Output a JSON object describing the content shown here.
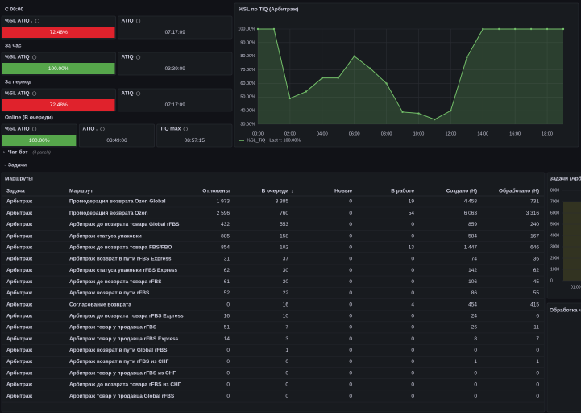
{
  "sections": [
    {
      "title": "С 00:00",
      "panels": [
        {
          "title": "%SL ATIQ .",
          "value": "72.48%",
          "color": "#e0222c"
        },
        {
          "title": "ATIQ",
          "value": "07:17:09"
        }
      ]
    },
    {
      "title": "За час",
      "panels": [
        {
          "title": "%SL ATIQ",
          "value": "100.00%",
          "color": "#56a64b"
        },
        {
          "title": "ATIQ",
          "value": "03:39:09"
        }
      ]
    },
    {
      "title": "За период",
      "panels": [
        {
          "title": "%SL ATIQ",
          "value": "72.48%",
          "color": "#e0222c"
        },
        {
          "title": "ATIQ",
          "value": "07:17:09"
        }
      ]
    },
    {
      "title": "Online (В очереди)",
      "panels": [
        {
          "title": "%SL ATIQ",
          "value": "100.00%",
          "color": "#56a64b"
        },
        {
          "title": "ATIQ .",
          "value": "03:49:06"
        },
        {
          "title": "TiQ max",
          "value": "08:57:15"
        }
      ]
    }
  ],
  "chart_data": {
    "type": "line",
    "title": "%SL по TiQ (Арбитраж)",
    "x": [
      0,
      1,
      2,
      3,
      4,
      5,
      6,
      7,
      8,
      9,
      10,
      11,
      12,
      13,
      14,
      15,
      16,
      17,
      18,
      19
    ],
    "series": [
      {
        "name": "%SL_TiQ",
        "color": "#73bf69",
        "values": [
          100,
          100,
          49,
          54,
          64,
          64,
          80,
          71,
          60,
          39,
          38,
          33.5,
          40,
          79,
          100,
          100,
          100,
          100,
          100,
          100
        ]
      }
    ],
    "legend_stat": "Last *: 100.00%",
    "xlim": [
      0,
      19
    ],
    "xticks": [
      {
        "value": 0,
        "label": "00:00"
      },
      {
        "value": 2,
        "label": "02:00"
      },
      {
        "value": 4,
        "label": "04:00"
      },
      {
        "value": 6,
        "label": "06:00"
      },
      {
        "value": 8,
        "label": "08:00"
      },
      {
        "value": 10,
        "label": "10:00"
      },
      {
        "value": 12,
        "label": "12:00"
      },
      {
        "value": 14,
        "label": "14:00"
      },
      {
        "value": 16,
        "label": "16:00"
      },
      {
        "value": 18,
        "label": "18:00"
      }
    ],
    "ylim": [
      30,
      100
    ],
    "yticks": [
      {
        "value": 30,
        "label": "30.00%"
      },
      {
        "value": 40,
        "label": "40.00%"
      },
      {
        "value": 50,
        "label": "50.00%"
      },
      {
        "value": 60,
        "label": "60.00%"
      },
      {
        "value": 70,
        "label": "70.00%"
      },
      {
        "value": 80,
        "label": "80.00%"
      },
      {
        "value": 90,
        "label": "90.00%"
      },
      {
        "value": 100,
        "label": "100.00%"
      }
    ],
    "grid": true
  },
  "rows": [
    {
      "title": "Чат-бот",
      "note": "(3 panels)"
    },
    {
      "title": "Задачи"
    }
  ],
  "table": {
    "title": "Маршруты",
    "columns": [
      "Задача",
      "Маршрут",
      "Отложены",
      "В очереди",
      "Новые",
      "В работе",
      "Создано (Н)",
      "Обработано (Н)"
    ],
    "rows": [
      [
        "Арбитраж",
        "Промодерация возврата Ozon Global",
        "1 973",
        "3 385",
        "0",
        "19",
        "4 458",
        "731"
      ],
      [
        "Арбитраж",
        "Промодерация возврата Ozon",
        "2 596",
        "760",
        "0",
        "54",
        "6 063",
        "3 316"
      ],
      [
        "Арбитраж",
        "Арбитраж до возврата товара Global rFBS",
        "432",
        "553",
        "0",
        "0",
        "859",
        "240"
      ],
      [
        "Арбитраж",
        "Арбитраж статуса упаковки",
        "885",
        "158",
        "0",
        "0",
        "584",
        "167"
      ],
      [
        "Арбитраж",
        "Арбитраж до возврата товара FBS/FBO",
        "854",
        "102",
        "0",
        "13",
        "1 447",
        "646"
      ],
      [
        "Арбитраж",
        "Арбитраж возврат в пути rFBS Express",
        "31",
        "37",
        "0",
        "0",
        "74",
        "36"
      ],
      [
        "Арбитраж",
        "Арбитраж статуса упаковки rFBS Express",
        "62",
        "30",
        "0",
        "0",
        "142",
        "62"
      ],
      [
        "Арбитраж",
        "Арбитраж до возврата товара rFBS",
        "61",
        "30",
        "0",
        "0",
        "106",
        "45"
      ],
      [
        "Арбитраж",
        "Арбитраж возврат в пути rFBS",
        "52",
        "22",
        "0",
        "0",
        "86",
        "55"
      ],
      [
        "Арбитраж",
        "Согласование возврата",
        "0",
        "16",
        "0",
        "4",
        "454",
        "415"
      ],
      [
        "Арбитраж",
        "Арбитраж до возврата товара rFBS Express",
        "16",
        "10",
        "0",
        "0",
        "24",
        "6"
      ],
      [
        "Арбитраж",
        "Арбитраж товар у продавца rFBS",
        "51",
        "7",
        "0",
        "0",
        "26",
        "11"
      ],
      [
        "Арбитраж",
        "Арбитраж товар у продавца rFBS Express",
        "14",
        "3",
        "0",
        "0",
        "8",
        "7"
      ],
      [
        "Арбитраж",
        "Арбитраж возврат в пути Global rFBS",
        "0",
        "1",
        "0",
        "0",
        "0",
        "0"
      ],
      [
        "Арбитраж",
        "Арбитраж возврат в пути rFBS из СНГ",
        "0",
        "0",
        "0",
        "0",
        "1",
        "1"
      ],
      [
        "Арбитраж",
        "Арбитраж товар у продавца rFBS из СНГ",
        "0",
        "0",
        "0",
        "0",
        "0",
        "0"
      ],
      [
        "Арбитраж",
        "Арбитраж до возврата товара rFBS из СНГ",
        "0",
        "0",
        "0",
        "0",
        "0",
        "0"
      ],
      [
        "Арбитраж",
        "Арбитраж товар у продавца Global rFBS",
        "0",
        "0",
        "0",
        "0",
        "0",
        "0"
      ]
    ]
  },
  "side_panels": [
    {
      "title": "Задачи (Арби",
      "yticks": [
        "8000",
        "7000",
        "6000",
        "5000",
        "4000",
        "3000",
        "2000",
        "1000",
        "0"
      ],
      "xtick": "01:00"
    },
    {
      "title": "Обработка ча"
    }
  ]
}
